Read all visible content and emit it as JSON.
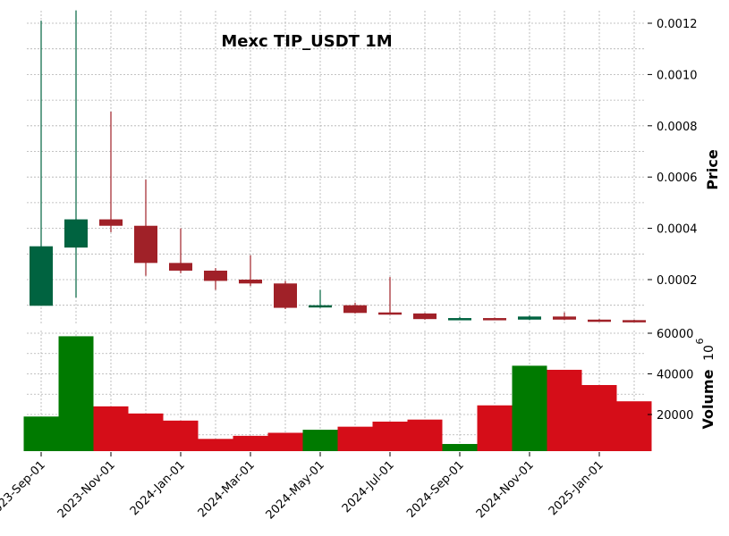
{
  "chart_data": {
    "type": "candlestick",
    "title": "Mexc TIP_USDT 1M",
    "price_panel": {
      "ylabel": "Price",
      "yticks": [
        0.0002,
        0.0004,
        0.0006,
        0.0008,
        0.001,
        0.0012
      ],
      "ytick_labels": [
        "0.0002",
        "0.0004",
        "0.0006",
        "0.0008",
        "0.0010",
        "0.0012"
      ],
      "ylim": [
        4e-05,
        0.00125
      ],
      "grid": true
    },
    "volume_panel": {
      "ylabel": "Volume",
      "yunit_exponent": "6",
      "yticks": [
        20000,
        40000,
        60000
      ],
      "ytick_labels": [
        "20000",
        "40000",
        "60000"
      ],
      "ylim": [
        0,
        62000
      ],
      "grid": true
    },
    "x_ticks": [
      "2023-Sep-01",
      "2023-Nov-01",
      "2024-Jan-01",
      "2024-Mar-01",
      "2024-May-01",
      "2024-Jul-01",
      "2024-Sep-01",
      "2024-Nov-01",
      "2025-Jan-01"
    ],
    "x_tick_indices": [
      0,
      2,
      4,
      6,
      8,
      10,
      12,
      14,
      16
    ],
    "colors": {
      "up_candle": "#006340",
      "down_candle": "#a02128",
      "up_volume": "#007a00",
      "down_volume": "#d50d18",
      "grid": "#b0b0b0"
    },
    "candles": [
      {
        "date": "2023-Sep",
        "open": 9.8e-05,
        "high": 0.00121,
        "low": 9.8e-05,
        "close": 0.00033,
        "volume": 19000
      },
      {
        "date": "2023-Oct",
        "open": 0.000325,
        "high": 0.00125,
        "low": 0.00013,
        "close": 0.000435,
        "volume": 58500
      },
      {
        "date": "2023-Nov",
        "open": 0.000435,
        "high": 0.000855,
        "low": 0.000385,
        "close": 0.00041,
        "volume": 24000
      },
      {
        "date": "2023-Dec",
        "open": 0.00041,
        "high": 0.00059,
        "low": 0.000215,
        "close": 0.000265,
        "volume": 20500
      },
      {
        "date": "2024-Jan",
        "open": 0.000265,
        "high": 0.0004,
        "low": 0.000225,
        "close": 0.000235,
        "volume": 17000
      },
      {
        "date": "2024-Feb",
        "open": 0.000235,
        "high": 0.000245,
        "low": 0.00016,
        "close": 0.000195,
        "volume": 8000
      },
      {
        "date": "2024-Mar",
        "open": 0.0002,
        "high": 0.000295,
        "low": 0.000175,
        "close": 0.000185,
        "volume": 9500
      },
      {
        "date": "2024-Apr",
        "open": 0.000185,
        "high": 0.000195,
        "low": 8.5e-05,
        "close": 9e-05,
        "volume": 11000
      },
      {
        "date": "2024-May",
        "open": 9.2e-05,
        "high": 0.00016,
        "low": 9e-05,
        "close": 0.0001,
        "volume": 12500
      },
      {
        "date": "2024-Jun",
        "open": 0.0001,
        "high": 0.00011,
        "low": 6.8e-05,
        "close": 7e-05,
        "volume": 14000
      },
      {
        "date": "2024-Jul",
        "open": 7.2e-05,
        "high": 0.00021,
        "low": 6.6e-05,
        "close": 6.8e-05,
        "volume": 16500
      },
      {
        "date": "2024-Aug",
        "open": 6.8e-05,
        "high": 7e-05,
        "low": 4.4e-05,
        "close": 4.6e-05,
        "volume": 17500
      },
      {
        "date": "2024-Sep",
        "open": 4.6e-05,
        "high": 5.5e-05,
        "low": 4.3e-05,
        "close": 5e-05,
        "volume": 5500
      },
      {
        "date": "2024-Oct",
        "open": 5e-05,
        "high": 5.2e-05,
        "low": 4.2e-05,
        "close": 4.4e-05,
        "volume": 24500
      },
      {
        "date": "2024-Nov",
        "open": 4.4e-05,
        "high": 6e-05,
        "low": 4.2e-05,
        "close": 5.6e-05,
        "volume": 44000
      },
      {
        "date": "2024-Dec",
        "open": 5.6e-05,
        "high": 7.2e-05,
        "low": 4.2e-05,
        "close": 4.4e-05,
        "volume": 42000
      },
      {
        "date": "2025-Jan",
        "open": 4.4e-05,
        "high": 4.6e-05,
        "low": 3.8e-05,
        "close": 4e-05,
        "volume": 34500
      },
      {
        "date": "2025-Feb",
        "open": 4.2e-05,
        "high": 4.3e-05,
        "low": 3.5e-05,
        "close": 3.6e-05,
        "volume": 26500
      }
    ]
  }
}
